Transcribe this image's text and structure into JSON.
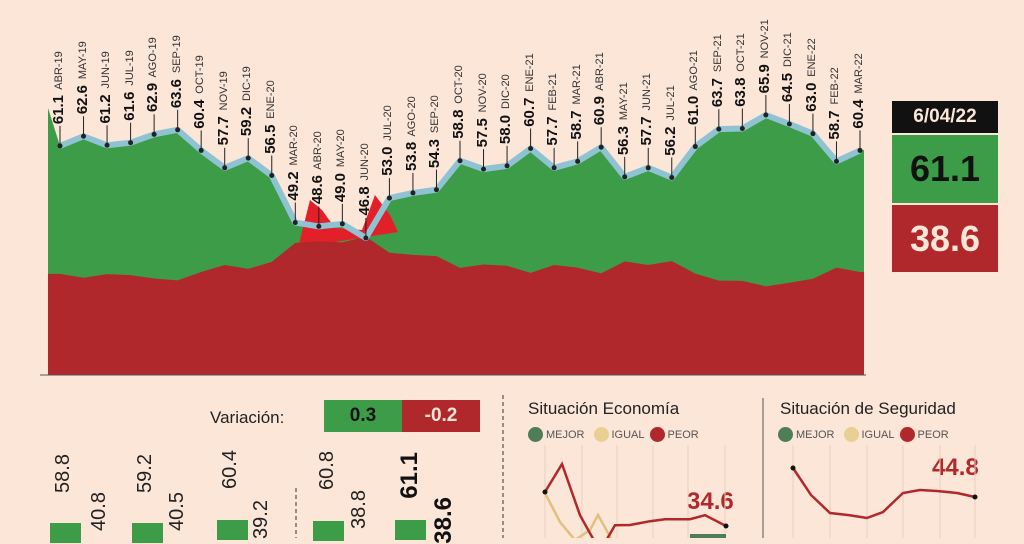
{
  "chart_data": [
    {
      "type": "line",
      "categories": [
        "ABR-19",
        "MAY-19",
        "JUN-19",
        "JUL-19",
        "AGO-19",
        "SEP-19",
        "OCT-19",
        "NOV-19",
        "DIC-19",
        "ENE-20",
        "MAR-20",
        "ABR-20",
        "MAY-20",
        "JUN-20",
        "JUL-20",
        "AGO-20",
        "SEP-20",
        "OCT-20",
        "NOV-20",
        "DIC-20",
        "ENE-21",
        "FEB-21",
        "MAR-21",
        "ABR-21",
        "MAY-21",
        "JUN-21",
        "JUL-21",
        "AGO-21",
        "SEP-21",
        "OCT-21",
        "NOV-21",
        "DIC-21",
        "ENE-22",
        "FEB-22",
        "MAR-22"
      ],
      "values": [
        61.1,
        62.6,
        61.2,
        61.6,
        62.9,
        63.6,
        60.4,
        57.7,
        59.2,
        56.5,
        49.2,
        48.6,
        49.0,
        46.8,
        53.0,
        53.8,
        54.3,
        58.8,
        57.5,
        58.0,
        60.7,
        57.7,
        58.7,
        60.9,
        56.3,
        57.7,
        56.2,
        61.0,
        63.7,
        63.8,
        65.9,
        64.5,
        63.0,
        58.7,
        60.4
      ],
      "value_labels": [
        "61.1",
        "62.6",
        "61.2",
        "61.6",
        "62.9",
        "63.6",
        "60.4",
        "57.7",
        "59.2",
        "56.5",
        "49.2",
        "48.6",
        "49.0",
        "46.8",
        "53.0",
        "53.8",
        "54.3",
        "58.8",
        "57.5",
        "58.0",
        "60.7",
        "57.7",
        "58.7",
        "60.9",
        "56.3",
        "57.7",
        "56.2",
        "61.0",
        "63.7",
        "63.8",
        "65.9",
        "64.5",
        "63.0",
        "58.7",
        "60.4"
      ],
      "colors": {
        "approval": "#3d9c47",
        "disapproval": "#b0282c",
        "line": "#8fc3d3",
        "spike": "#e2202a"
      }
    },
    {
      "type": "line",
      "title": "Situación Economía",
      "legend": [
        "MEJOR",
        "IGUAL",
        "PEOR"
      ],
      "series": [
        {
          "name": "MEJOR",
          "color": "#4f7d57",
          "values": [
            29.6,
            29.6,
            29.6
          ]
        },
        {
          "name": "IGUAL",
          "color": "#e0c27e",
          "values": [
            51.1,
            36.6,
            27.6,
            32.6,
            40.1,
            27.6
          ]
        },
        {
          "name": "PEOR",
          "color": "#b0282c",
          "values": [
            51.6,
            65.6,
            40.0,
            22.0,
            35.0,
            35.1,
            37.0,
            38.0,
            38.0,
            40.0,
            34.6
          ]
        }
      ],
      "annotation": "34.6"
    },
    {
      "type": "line",
      "title": "Situación de Seguridad",
      "legend": [
        "MEJOR",
        "IGUAL",
        "PEOR"
      ],
      "series": [
        {
          "name": "PEOR",
          "color": "#b0282c",
          "values": [
            59.3,
            45.8,
            36.8,
            35.8,
            34.3,
            37.3,
            46.8,
            48.3,
            47.8,
            46.8,
            44.8
          ]
        }
      ],
      "annotation": "44.8"
    }
  ],
  "latest": {
    "date": "6/04/22",
    "approval": "61.1",
    "disapproval": "38.6"
  },
  "variation": {
    "label": "Variación:",
    "approval": "0.3",
    "disapproval": "-0.2"
  },
  "bars": [
    {
      "approval": "58.8",
      "disapproval": "40.8"
    },
    {
      "approval": "59.2",
      "disapproval": "40.5"
    },
    {
      "approval": "60.4",
      "disapproval": "39.2"
    },
    {
      "approval": "60.8",
      "disapproval": "38.8"
    },
    {
      "approval": "61.1",
      "disapproval": "38.6"
    }
  ],
  "economy": {
    "title": "Situación Economía",
    "legend": [
      "MEJOR",
      "IGUAL",
      "PEOR"
    ],
    "value": "34.6"
  },
  "security": {
    "title": "Situación de Seguridad",
    "legend": [
      "MEJOR",
      "IGUAL",
      "PEOR"
    ],
    "value": "44.8"
  }
}
